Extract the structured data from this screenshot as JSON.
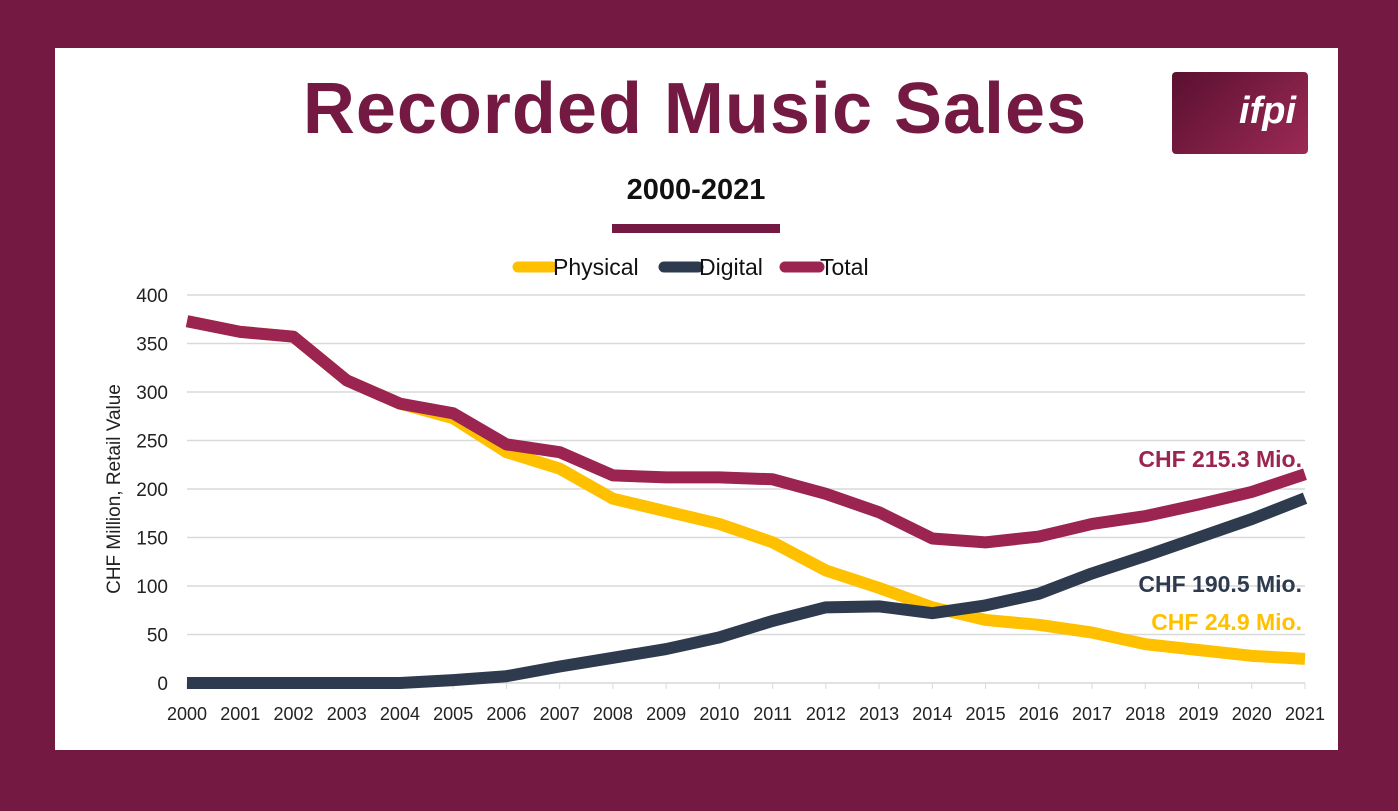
{
  "title": "Recorded Music Sales",
  "subtitle": "2000-2021",
  "logo_text": "ifpi",
  "chart_data": {
    "type": "line",
    "title": "Recorded Music Sales",
    "subtitle": "2000-2021",
    "ylabel": "CHF Million, Retail Value",
    "xlabel": "",
    "ylim": [
      0,
      400
    ],
    "yticks": [
      0,
      50,
      100,
      150,
      200,
      250,
      300,
      350,
      400
    ],
    "grid": true,
    "legend": "top-center",
    "x": [
      2000,
      2001,
      2002,
      2003,
      2004,
      2005,
      2006,
      2007,
      2008,
      2009,
      2010,
      2011,
      2012,
      2013,
      2014,
      2015,
      2016,
      2017,
      2018,
      2019,
      2020,
      2021
    ],
    "series": [
      {
        "name": "Physical",
        "color": "#FFC000",
        "values": [
          373,
          362,
          357,
          312,
          288,
          273,
          238,
          221,
          190,
          177,
          164,
          145,
          116,
          98,
          78,
          65,
          60,
          52,
          40,
          34,
          28,
          24.9
        ],
        "end_label": "CHF 24.9 Mio."
      },
      {
        "name": "Digital",
        "color": "#2E3B4E",
        "values": [
          0,
          0,
          0,
          0,
          0,
          3,
          7,
          17,
          26,
          35,
          47,
          64,
          78,
          79,
          72,
          80,
          92,
          113,
          131,
          150,
          169,
          190.5
        ],
        "end_label": "CHF 190.5 Mio."
      },
      {
        "name": "Total",
        "color": "#9B2450",
        "values": [
          373,
          362,
          357,
          312,
          288,
          278,
          246,
          238,
          214,
          212,
          212,
          210,
          195,
          176,
          149,
          145,
          151,
          164,
          172,
          184,
          197,
          215.3
        ],
        "end_label": "CHF 215.3 Mio."
      }
    ]
  }
}
